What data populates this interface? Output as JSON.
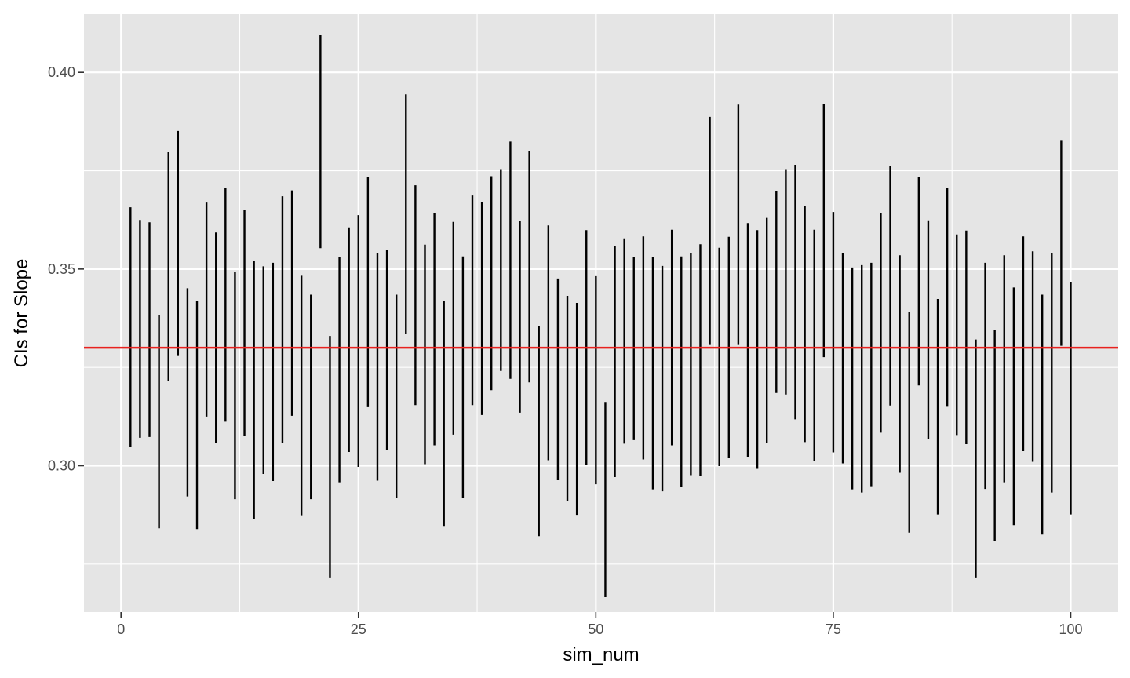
{
  "chart_data": {
    "type": "errorbar",
    "xlabel": "sim_num",
    "ylabel": "CIs for Slope",
    "xlim": [
      -3.9,
      105.0
    ],
    "ylim": [
      0.2628,
      0.4148
    ],
    "x_ticks": [
      0,
      25,
      50,
      75,
      100
    ],
    "x_tick_labels": [
      "0",
      "25",
      "50",
      "75",
      "100"
    ],
    "y_ticks": [
      0.3,
      0.35,
      0.4
    ],
    "y_tick_labels": [
      "0.30",
      "0.35",
      "0.40"
    ],
    "grid": true,
    "reference_line": {
      "y": 0.33,
      "color": "#e8211e"
    },
    "colors": {
      "panel": "#e5e5e5",
      "grid": "#ffffff",
      "bar": "#000000"
    },
    "intervals": [
      [
        1,
        0.3049,
        0.3657
      ],
      [
        2,
        0.3071,
        0.3625
      ],
      [
        3,
        0.3073,
        0.3619
      ],
      [
        4,
        0.2841,
        0.3382
      ],
      [
        5,
        0.3216,
        0.3797
      ],
      [
        6,
        0.3279,
        0.3851
      ],
      [
        7,
        0.2922,
        0.3451
      ],
      [
        8,
        0.2839,
        0.342
      ],
      [
        9,
        0.3125,
        0.3669
      ],
      [
        10,
        0.3058,
        0.3593
      ],
      [
        11,
        0.3112,
        0.3707
      ],
      [
        12,
        0.2915,
        0.3493
      ],
      [
        13,
        0.3075,
        0.3651
      ],
      [
        14,
        0.2864,
        0.3521
      ],
      [
        15,
        0.2979,
        0.3507
      ],
      [
        16,
        0.2961,
        0.3516
      ],
      [
        17,
        0.3058,
        0.3685
      ],
      [
        18,
        0.3127,
        0.37
      ],
      [
        19,
        0.2874,
        0.3483
      ],
      [
        20,
        0.2915,
        0.3435
      ],
      [
        21,
        0.3553,
        0.4095
      ],
      [
        22,
        0.2716,
        0.333
      ],
      [
        23,
        0.2958,
        0.353
      ],
      [
        24,
        0.3035,
        0.3606
      ],
      [
        25,
        0.2997,
        0.3637
      ],
      [
        26,
        0.3149,
        0.3735
      ],
      [
        27,
        0.2962,
        0.354
      ],
      [
        28,
        0.3041,
        0.3549
      ],
      [
        29,
        0.2919,
        0.3435
      ],
      [
        30,
        0.3336,
        0.3944
      ],
      [
        31,
        0.3154,
        0.3713
      ],
      [
        32,
        0.3004,
        0.3562
      ],
      [
        33,
        0.3052,
        0.3643
      ],
      [
        34,
        0.2847,
        0.3419
      ],
      [
        35,
        0.3079,
        0.362
      ],
      [
        36,
        0.2919,
        0.3532
      ],
      [
        37,
        0.3154,
        0.3687
      ],
      [
        38,
        0.3129,
        0.3671
      ],
      [
        39,
        0.3192,
        0.3736
      ],
      [
        40,
        0.3241,
        0.3752
      ],
      [
        41,
        0.3221,
        0.3824
      ],
      [
        42,
        0.3135,
        0.3622
      ],
      [
        43,
        0.3212,
        0.3799
      ],
      [
        44,
        0.2821,
        0.3355
      ],
      [
        45,
        0.3014,
        0.3611
      ],
      [
        46,
        0.2963,
        0.3476
      ],
      [
        47,
        0.291,
        0.3432
      ],
      [
        48,
        0.2875,
        0.3414
      ],
      [
        49,
        0.3003,
        0.3599
      ],
      [
        50,
        0.2953,
        0.3482
      ],
      [
        51,
        0.2666,
        0.3162
      ],
      [
        52,
        0.2971,
        0.3558
      ],
      [
        53,
        0.3056,
        0.3578
      ],
      [
        54,
        0.3065,
        0.3531
      ],
      [
        55,
        0.3016,
        0.3583
      ],
      [
        56,
        0.294,
        0.3531
      ],
      [
        57,
        0.2935,
        0.3508
      ],
      [
        58,
        0.3052,
        0.36
      ],
      [
        59,
        0.2947,
        0.3532
      ],
      [
        60,
        0.2976,
        0.3541
      ],
      [
        61,
        0.2973,
        0.3563
      ],
      [
        62,
        0.3307,
        0.3887
      ],
      [
        63,
        0.2999,
        0.3554
      ],
      [
        64,
        0.3019,
        0.3582
      ],
      [
        65,
        0.3307,
        0.3918
      ],
      [
        66,
        0.3021,
        0.3617
      ],
      [
        67,
        0.2992,
        0.3599
      ],
      [
        68,
        0.3058,
        0.363
      ],
      [
        69,
        0.3185,
        0.3698
      ],
      [
        70,
        0.3181,
        0.3752
      ],
      [
        71,
        0.3118,
        0.3765
      ],
      [
        72,
        0.306,
        0.366
      ],
      [
        73,
        0.3012,
        0.36
      ],
      [
        74,
        0.3276,
        0.3919
      ],
      [
        75,
        0.3034,
        0.3645
      ],
      [
        76,
        0.3006,
        0.3541
      ],
      [
        77,
        0.294,
        0.3504
      ],
      [
        78,
        0.2932,
        0.351
      ],
      [
        79,
        0.2948,
        0.3516
      ],
      [
        80,
        0.3084,
        0.3643
      ],
      [
        81,
        0.3153,
        0.3763
      ],
      [
        82,
        0.2982,
        0.3535
      ],
      [
        83,
        0.283,
        0.339
      ],
      [
        84,
        0.3204,
        0.3735
      ],
      [
        85,
        0.3068,
        0.3624
      ],
      [
        86,
        0.2876,
        0.3424
      ],
      [
        87,
        0.315,
        0.3706
      ],
      [
        88,
        0.3078,
        0.3588
      ],
      [
        89,
        0.3055,
        0.3598
      ],
      [
        90,
        0.2716,
        0.3321
      ],
      [
        91,
        0.2941,
        0.3516
      ],
      [
        92,
        0.2808,
        0.3344
      ],
      [
        93,
        0.2958,
        0.3535
      ],
      [
        94,
        0.2849,
        0.3453
      ],
      [
        95,
        0.3037,
        0.3583
      ],
      [
        96,
        0.301,
        0.3545
      ],
      [
        97,
        0.2825,
        0.3435
      ],
      [
        98,
        0.2932,
        0.354
      ],
      [
        99,
        0.3305,
        0.3826
      ],
      [
        100,
        0.2876,
        0.3467
      ]
    ]
  }
}
